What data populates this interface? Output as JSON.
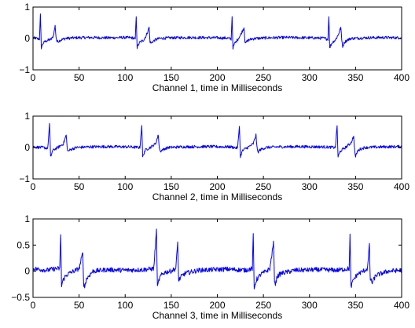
{
  "chart_data": [
    {
      "type": "line",
      "title": "",
      "xlabel": "Channel 1, time in Milliseconds",
      "ylabel": "",
      "xlim": [
        0,
        400
      ],
      "ylim": [
        -1,
        1
      ],
      "xticks": [
        0,
        50,
        100,
        150,
        200,
        250,
        300,
        350,
        400
      ],
      "yticks": [
        -1,
        0,
        1
      ],
      "ytick_labels": [
        "−1",
        "0",
        "1"
      ],
      "color": "#0000ff",
      "series": [
        {
          "x": [
            0,
            4,
            7,
            8,
            9,
            10,
            11,
            13,
            16,
            20,
            22,
            24,
            25,
            26,
            28,
            31,
            35,
            45,
            60,
            80,
            100,
            108,
            111,
            112,
            113,
            114,
            116,
            120,
            123,
            126,
            127,
            128,
            130,
            133,
            137,
            150,
            170,
            200,
            211,
            215,
            216,
            217,
            218,
            219,
            221,
            225,
            229,
            230,
            231,
            232,
            234,
            237,
            241,
            255,
            275,
            300,
            315,
            320,
            321,
            322,
            323,
            325,
            328,
            331,
            334,
            335,
            336,
            338,
            341,
            345,
            360,
            380,
            400
          ],
          "y": [
            0.02,
            0.0,
            -0.02,
            0.75,
            -0.3,
            -0.22,
            -0.15,
            -0.1,
            -0.06,
            -0.02,
            0.08,
            0.4,
            0.05,
            -0.1,
            -0.08,
            -0.04,
            0.0,
            0.02,
            0.03,
            0.02,
            0.03,
            0.02,
            -0.02,
            0.72,
            -0.3,
            -0.22,
            -0.12,
            -0.05,
            0.1,
            0.35,
            -0.1,
            -0.15,
            -0.1,
            -0.04,
            0.0,
            0.02,
            0.03,
            0.02,
            0.01,
            -0.02,
            0.72,
            -0.3,
            -0.22,
            -0.15,
            -0.08,
            0.1,
            0.35,
            -0.1,
            -0.15,
            -0.1,
            -0.05,
            -0.02,
            0.0,
            0.02,
            0.03,
            0.02,
            0.01,
            -0.02,
            0.72,
            -0.32,
            -0.22,
            -0.12,
            -0.05,
            0.1,
            0.35,
            -0.05,
            -0.25,
            -0.12,
            -0.05,
            0.0,
            0.02,
            0.03,
            0.02
          ]
        }
      ]
    },
    {
      "type": "line",
      "title": "",
      "xlabel": "Channel 2, time in Milliseconds",
      "ylabel": "",
      "xlim": [
        0,
        400
      ],
      "ylim": [
        -1,
        1
      ],
      "xticks": [
        0,
        50,
        100,
        150,
        200,
        250,
        300,
        350,
        400
      ],
      "yticks": [
        -1,
        0,
        1
      ],
      "ytick_labels": [
        "−1",
        "0",
        "1"
      ],
      "color": "#0000ff",
      "series": [
        {
          "x": [
            0,
            10,
            16,
            18,
            19,
            20,
            21,
            23,
            27,
            33,
            36,
            37,
            38,
            40,
            43,
            47,
            60,
            80,
            105,
            116,
            118,
            119,
            120,
            121,
            123,
            127,
            133,
            136,
            137,
            138,
            140,
            143,
            147,
            160,
            190,
            215,
            222,
            224,
            225,
            226,
            227,
            229,
            233,
            239,
            242,
            243,
            244,
            246,
            249,
            253,
            265,
            290,
            315,
            328,
            330,
            331,
            332,
            333,
            335,
            339,
            345,
            348,
            349,
            350,
            352,
            355,
            360,
            380,
            400
          ],
          "y": [
            0.02,
            0.0,
            -0.02,
            0.75,
            -0.3,
            -0.22,
            -0.12,
            -0.06,
            0.0,
            0.12,
            0.4,
            0.0,
            -0.12,
            -0.08,
            -0.04,
            0.0,
            0.02,
            0.03,
            0.02,
            0.0,
            0.72,
            -0.3,
            -0.22,
            -0.12,
            -0.06,
            0.0,
            0.12,
            0.4,
            0.0,
            -0.12,
            -0.08,
            -0.04,
            0.0,
            0.02,
            0.03,
            0.02,
            -0.02,
            0.72,
            -0.3,
            -0.2,
            -0.12,
            -0.06,
            0.0,
            0.12,
            0.4,
            0.0,
            -0.15,
            -0.08,
            -0.04,
            0.0,
            0.02,
            0.03,
            0.02,
            0.0,
            0.7,
            -0.3,
            -0.22,
            -0.14,
            -0.08,
            0.0,
            0.15,
            0.35,
            -0.1,
            -0.3,
            -0.12,
            -0.05,
            0.0,
            0.02,
            0.03
          ]
        }
      ]
    },
    {
      "type": "line",
      "title": "",
      "xlabel": "Channel 3, time in Milliseconds",
      "ylabel": "",
      "xlim": [
        0,
        400
      ],
      "ylim": [
        -0.5,
        1
      ],
      "xticks": [
        0,
        50,
        100,
        150,
        200,
        250,
        300,
        350,
        400
      ],
      "yticks": [
        -0.5,
        0,
        0.5,
        1
      ],
      "ytick_labels": [
        "−0.5",
        "0",
        "0.5",
        "1"
      ],
      "color": "#0000ff",
      "series": [
        {
          "x": [
            0,
            15,
            25,
            29,
            30,
            31,
            32,
            34,
            38,
            44,
            50,
            54,
            55,
            56,
            58,
            61,
            65,
            80,
            100,
            120,
            131,
            134,
            135,
            136,
            137,
            139,
            143,
            149,
            155,
            157,
            158,
            159,
            161,
            165,
            180,
            210,
            230,
            238,
            239,
            240,
            241,
            243,
            247,
            253,
            257,
            261,
            262,
            263,
            265,
            269,
            285,
            310,
            330,
            343,
            344,
            345,
            346,
            348,
            352,
            358,
            363,
            365,
            366,
            368,
            372,
            385,
            400
          ],
          "y": [
            0.05,
            0.02,
            0.05,
            0.05,
            0.72,
            -0.3,
            -0.2,
            -0.12,
            -0.05,
            0.0,
            0.05,
            0.35,
            -0.25,
            -0.3,
            -0.15,
            -0.08,
            0.0,
            0.03,
            0.02,
            0.03,
            0.05,
            0.78,
            -0.32,
            -0.22,
            -0.15,
            -0.08,
            -0.02,
            0.0,
            0.05,
            0.55,
            -0.2,
            -0.15,
            -0.1,
            -0.04,
            0.02,
            0.04,
            0.02,
            0.05,
            0.68,
            -0.35,
            -0.24,
            -0.15,
            -0.06,
            0.0,
            0.05,
            0.55,
            -0.15,
            -0.25,
            -0.1,
            -0.04,
            0.02,
            0.03,
            0.02,
            0.05,
            0.7,
            -0.3,
            -0.25,
            -0.15,
            -0.06,
            0.0,
            0.05,
            0.5,
            -0.15,
            -0.22,
            -0.08,
            0.0,
            0.02
          ]
        }
      ]
    }
  ]
}
